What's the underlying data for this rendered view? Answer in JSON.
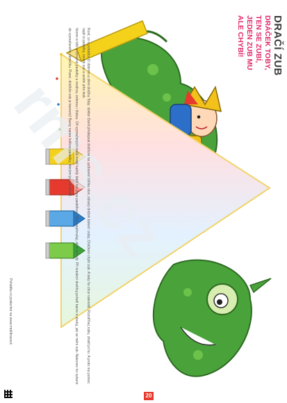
{
  "header": {
    "title": "DRAČÍ ZUB",
    "subtitle_lines": [
      "DRÁČEK TOBY,",
      "TEN SE ZUBÍ,",
      "JEDEN ZUB MU",
      "ALE CHYBÍ!"
    ]
  },
  "body": {
    "paragraph1": "Rosť, co v pohádce O dobrém a zlém dráčku Toby: doktor Daníl předepsal dráčkovi na uzdravení bílilka slon; zdravý dráček bolest i zuby; Dráčkovi chybí zub. A taky ho chce nakreslit. Rozstříhej zubu, ztratil jsi ho. A proto mu pomoc: najdi si pastelky, ozdob zub a uvolni jeho lesk.",
    "paragraph2": "Vezmi si bílé a červené pastelky a modrou, zelenou i žlutou. Oři vyznačených bodů kreslí každý další tah jinou pastelkou. Tahy nepřerušuj, ať je plynulý. Při kreslení dodržuj pořadí barev a sleduj, jak se mění zub. Nakonec ho vybarvi.",
    "paragraph3": "do vyznačeného rámečku. Pozor, dráčkův zub je barevný! Barvy nanes tužkou pastelky, kterými jsi zub kreslil."
  },
  "credit": "Pohádku si poslechni na www.rmd/draceck",
  "page_number": "20",
  "watermark": "rms.cz",
  "colors": {
    "accent_pink": "#e02a6a",
    "green": "#3aa43a",
    "red": "#e53a2d",
    "yellow": "#f4d21c",
    "blue": "#2a7cc7"
  },
  "pencils": [
    {
      "color": "yellow",
      "icon": "yellow-pencil-icon"
    },
    {
      "color": "red",
      "icon": "red-pencil-icon"
    },
    {
      "color": "blue",
      "icon": "blue-pencil-icon"
    },
    {
      "color": "green",
      "icon": "green-pencil-icon"
    }
  ]
}
